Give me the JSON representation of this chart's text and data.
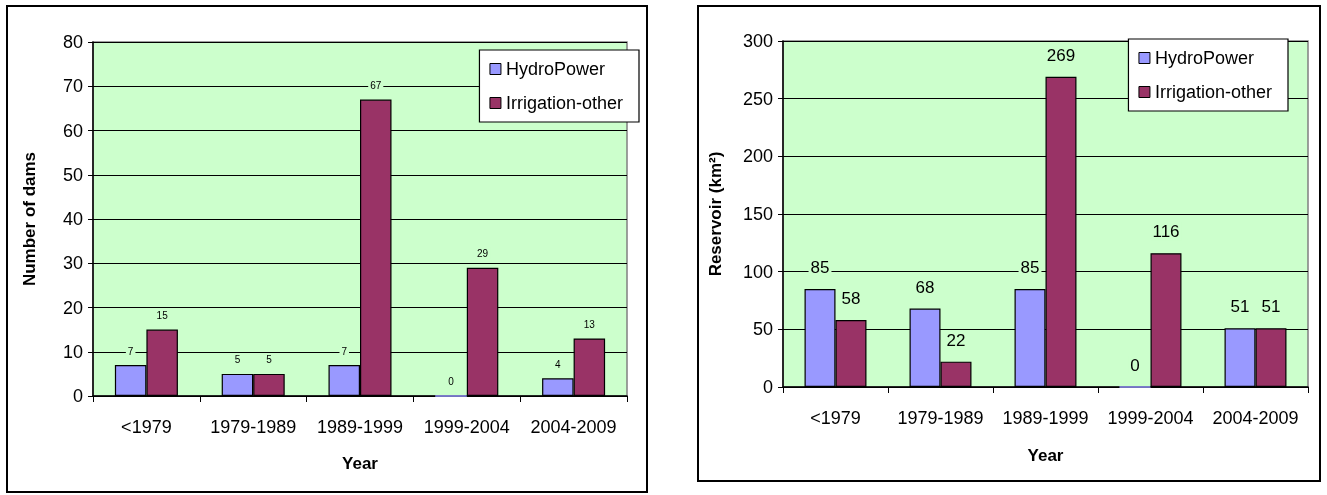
{
  "chart_data": [
    {
      "type": "bar",
      "xlabel": "Year",
      "ylabel": "Number of dams",
      "categories": [
        "<1979",
        "1979-1989",
        "1989-1999",
        "1999-2004",
        "2004-2009"
      ],
      "series": [
        {
          "name": "HydroPower",
          "color": "#9999ff",
          "values": [
            7,
            5,
            7,
            0,
            4
          ]
        },
        {
          "name": "Irrigation-other",
          "color": "#993366",
          "values": [
            15,
            5,
            67,
            29,
            13
          ]
        }
      ],
      "ylim": [
        0,
        80
      ],
      "yticks": [
        0,
        10,
        20,
        30,
        40,
        50,
        60,
        70,
        80
      ],
      "grid": "y",
      "legend": "top right",
      "data_labels": true
    },
    {
      "type": "bar",
      "xlabel": "Year",
      "ylabel": "Reservoir (km²)",
      "categories": [
        "<1979",
        "1979-1989",
        "1989-1999",
        "1999-2004",
        "2004-2009"
      ],
      "series": [
        {
          "name": "HydroPower",
          "color": "#9999ff",
          "values": [
            85,
            68,
            85,
            0,
            51
          ]
        },
        {
          "name": "Irrigation-other",
          "color": "#993366",
          "values": [
            58,
            22,
            269,
            116,
            51
          ]
        }
      ],
      "ylim": [
        0,
        300
      ],
      "yticks": [
        0,
        50,
        100,
        150,
        200,
        250,
        300
      ],
      "grid": "y",
      "legend": "top right",
      "data_labels": true
    }
  ]
}
